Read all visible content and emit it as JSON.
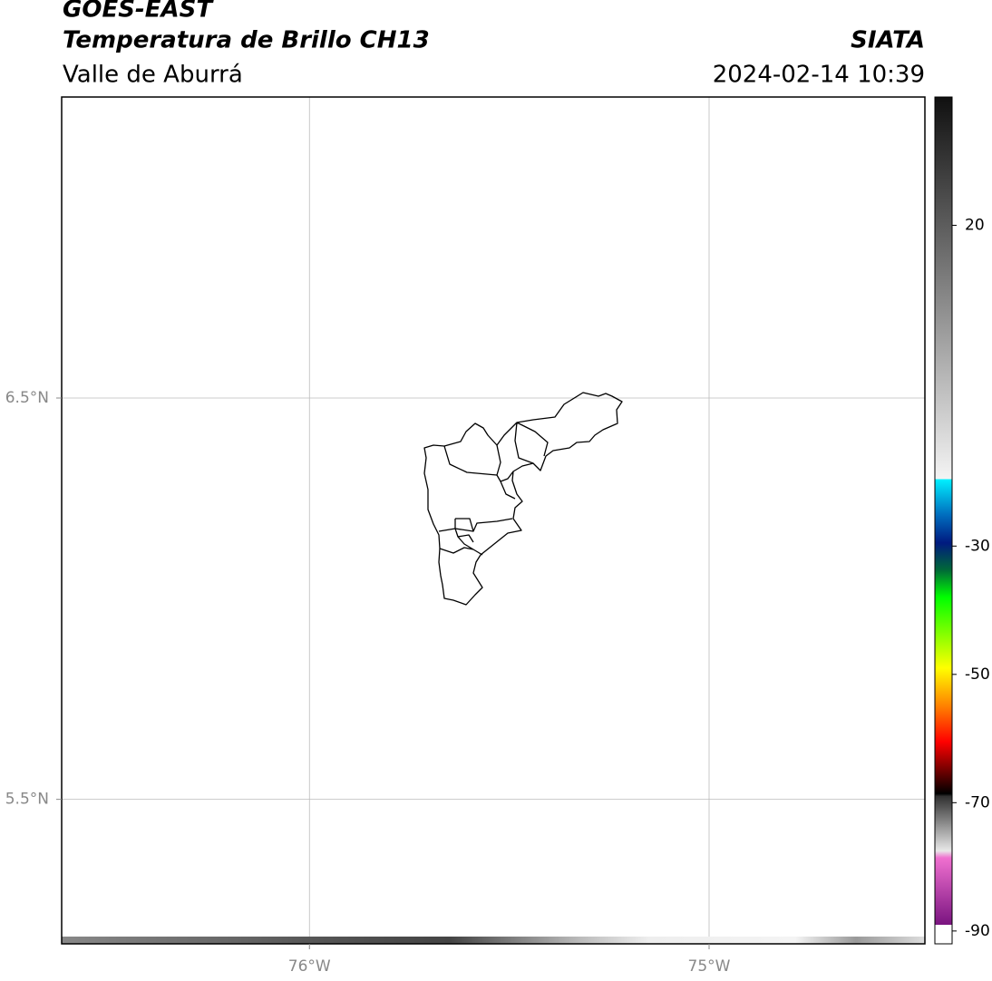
{
  "chart_data": {
    "type": "map",
    "title": "GOES-EAST",
    "subtitle": "Temperatura de Brillo CH13",
    "region": "Valle de Aburrá",
    "source": "SIATA",
    "datetime": "2024-02-14 10:39",
    "xlim": [
      -76.62,
      -74.46
    ],
    "ylim": [
      5.14,
      7.25
    ],
    "xticks": [
      {
        "value": -76,
        "label": "76°W"
      },
      {
        "value": -75,
        "label": "75°W"
      }
    ],
    "yticks": [
      {
        "value": 6.5,
        "label": "6.5°N"
      },
      {
        "value": 5.5,
        "label": "5.5°N"
      }
    ],
    "grid": true,
    "colorbar": {
      "lim": [
        -92,
        40
      ],
      "ticks": [
        20,
        -30,
        -50,
        -70,
        -90
      ],
      "stops": [
        {
          "value": -92,
          "color": "#ffffff"
        },
        {
          "value": -89,
          "color": "#ffffff"
        },
        {
          "value": -89,
          "color": "#7a1480"
        },
        {
          "value": -78.6,
          "color": "#f070d0"
        },
        {
          "value": -77.5,
          "color": "#e8e8e8"
        },
        {
          "value": -69,
          "color": "#303030"
        },
        {
          "value": -68.6,
          "color": "#000000"
        },
        {
          "value": -60.5,
          "color": "#ff0000"
        },
        {
          "value": -55,
          "color": "#ff8000"
        },
        {
          "value": -49,
          "color": "#ffff00"
        },
        {
          "value": -38,
          "color": "#00ff00"
        },
        {
          "value": -33.7,
          "color": "#006838"
        },
        {
          "value": -29.5,
          "color": "#001a80"
        },
        {
          "value": -25,
          "color": "#0070c0"
        },
        {
          "value": -19.6,
          "color": "#00f0ff"
        },
        {
          "value": -19.6,
          "color": "#f4f4f4"
        },
        {
          "value": 40,
          "color": "#101010"
        }
      ]
    }
  }
}
